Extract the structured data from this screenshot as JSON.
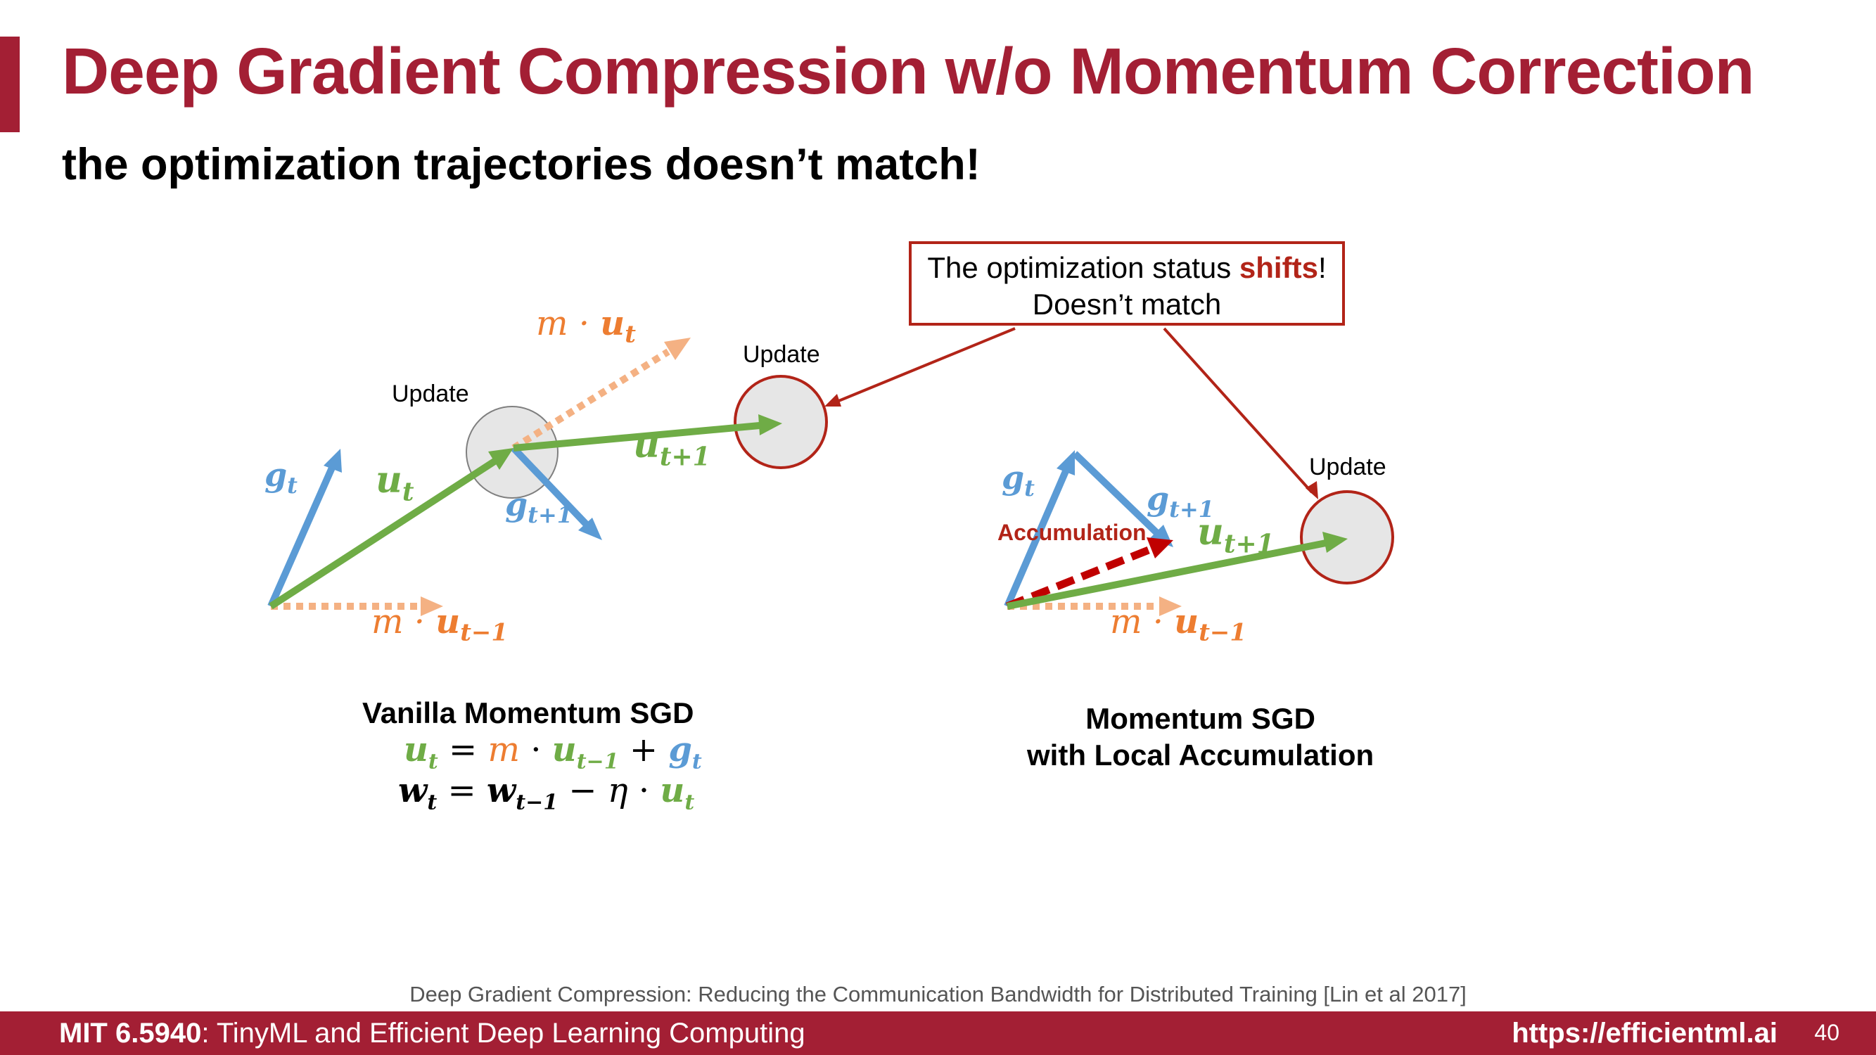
{
  "slide": {
    "title": "Deep Gradient Compression w/o Momentum Correction",
    "subtitle": "the optimization trajectories doesn’t match!"
  },
  "status_box": {
    "text_pre": "The optimization status ",
    "text_highlight": "shifts",
    "text_post": "!",
    "line2": "Doesn’t match"
  },
  "left_diagram": {
    "update_label": "Update",
    "caption": "Vanilla Momentum SGD"
  },
  "right_diagram": {
    "update_label": "Update",
    "accumulation_label": "Accumulation",
    "caption_line1": "Momentum SGD",
    "caption_line2": "with Local Accumulation"
  },
  "vector_labels": {
    "g_base": "g",
    "u_base": "u",
    "m_dot": "m ·",
    "sub_t": "t",
    "sub_t1": "t+1",
    "sub_tm1": "t−1"
  },
  "equations": {
    "eq1_u": "u",
    "eq1_t": "t",
    "eq1_eq": " = ",
    "eq1_m": "m",
    "eq1_dot": " · ",
    "eq1_u2": "u",
    "eq1_tm1": "t−1",
    "eq1_plus": " + ",
    "eq1_g": "g",
    "eq1_gt": "t",
    "eq2_w": "w",
    "eq2_t": "t",
    "eq2_eq": " = ",
    "eq2_w2": "w",
    "eq2_tm1": "t−1",
    "eq2_minus": " − ",
    "eq2_eta": "η",
    "eq2_dot": " · ",
    "eq2_u": "u",
    "eq2_ut": "t"
  },
  "reference": "Deep Gradient Compression: Reducing the Communication Bandwidth for Distributed Training [Lin et al 2017]",
  "footer": {
    "course_code": "MIT 6.5940",
    "course_name": ": TinyML and Efficient Deep Learning Computing",
    "url": "https://efficientml.ai",
    "page_number": "40"
  },
  "colors": {
    "brand": "#A31F34",
    "gradient": "#5B9BD5",
    "update": "#6FAC46",
    "momentum": "#F4B183",
    "momentum_text": "#ED7D31",
    "accumulation": "#C00000",
    "status_border": "#B22418"
  }
}
